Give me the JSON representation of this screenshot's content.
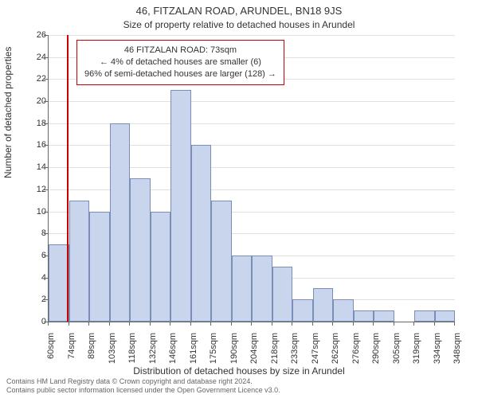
{
  "title": "46, FITZALAN ROAD, ARUNDEL, BN18 9JS",
  "subtitle": "Size of property relative to detached houses in Arundel",
  "chart": {
    "type": "histogram",
    "y_axis_label": "Number of detached properties",
    "x_axis_label": "Distribution of detached houses by size in Arundel",
    "ylim": [
      0,
      26
    ],
    "ytick_step": 2,
    "xticks": [
      "60sqm",
      "74sqm",
      "89sqm",
      "103sqm",
      "118sqm",
      "132sqm",
      "146sqm",
      "161sqm",
      "175sqm",
      "190sqm",
      "204sqm",
      "218sqm",
      "233sqm",
      "247sqm",
      "262sqm",
      "276sqm",
      "290sqm",
      "305sqm",
      "319sqm",
      "334sqm",
      "348sqm"
    ],
    "values": [
      7,
      11,
      10,
      18,
      13,
      10,
      21,
      16,
      11,
      6,
      6,
      5,
      2,
      3,
      2,
      1,
      1,
      0,
      1,
      1
    ],
    "bar_color": "#c9d4ed",
    "bar_border_color": "#7a8fb8",
    "background_color": "#ffffff",
    "grid_color": "#e0e0e0",
    "axis_color": "#666666",
    "tick_fontsize": 11,
    "label_fontsize": 12
  },
  "callout": {
    "marker_color": "#cc0000",
    "marker_at_sqm": 73,
    "line1": "46 FITZALAN ROAD: 73sqm",
    "line2": "← 4% of detached houses are smaller (6)",
    "line3": "96% of semi-detached houses are larger (128) →"
  },
  "attribution": {
    "line1": "Contains HM Land Registry data © Crown copyright and database right 2024.",
    "line2": "Contains public sector information licensed under the Open Government Licence v3.0."
  }
}
